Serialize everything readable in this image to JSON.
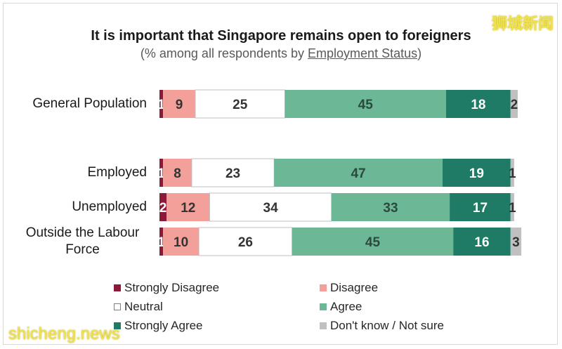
{
  "title": "It is important that Singapore remains open to foreigners",
  "subtitle_pre": "(% among all respondents by ",
  "subtitle_link": "Employment Status",
  "subtitle_post": ")",
  "watermark_cn": "狮城新闻",
  "watermark_en": "shicheng.news",
  "chart_data": {
    "type": "bar",
    "orientation": "horizontal-stacked-100",
    "title": "It is important that Singapore remains open to foreigners",
    "subtitle": "(% among all respondents by Employment Status)",
    "categories": [
      "General Population",
      "Employed",
      "Unemployed",
      "Outside the Labour Force"
    ],
    "series": [
      {
        "name": "Strongly Disagree",
        "color": "#8b1a3a",
        "values": [
          1,
          1,
          2,
          1
        ]
      },
      {
        "name": "Disagree",
        "color": "#f4a09a",
        "values": [
          9,
          8,
          12,
          10
        ]
      },
      {
        "name": "Neutral",
        "color": "#ffffff",
        "values": [
          25,
          23,
          34,
          26
        ]
      },
      {
        "name": "Agree",
        "color": "#6cb896",
        "values": [
          45,
          47,
          33,
          45
        ]
      },
      {
        "name": "Strongly Agree",
        "color": "#1f7a66",
        "values": [
          18,
          19,
          17,
          16
        ]
      },
      {
        "name": "Don't know / Not sure",
        "color": "#c0c0c0",
        "values": [
          2,
          1,
          1,
          3
        ]
      }
    ],
    "xlim": [
      0,
      100
    ],
    "legend_position": "bottom"
  }
}
